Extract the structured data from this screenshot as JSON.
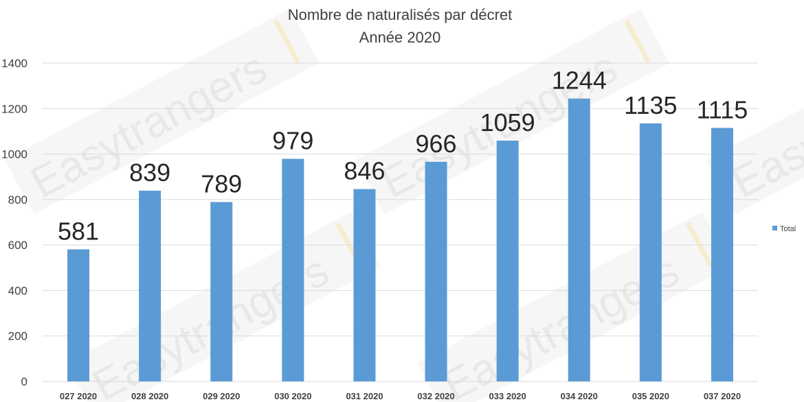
{
  "chart_data": {
    "type": "bar",
    "title": [
      "Nombre de naturalisés par décret",
      "Année 2020"
    ],
    "categories": [
      "027 2020",
      "028 2020",
      "029 2020",
      "030 2020",
      "031 2020",
      "032 2020",
      "033 2020",
      "034 2020",
      "035 2020",
      "037 2020"
    ],
    "series": [
      {
        "name": "Total",
        "values": [
          581,
          839,
          789,
          979,
          846,
          966,
          1059,
          1244,
          1135,
          1115
        ],
        "color": "#5b9bd5"
      }
    ],
    "ylim": [
      0,
      1400
    ],
    "yticks": [
      0,
      200,
      400,
      600,
      800,
      1000,
      1200,
      1400
    ],
    "grid": true,
    "data_labels": true,
    "legend_position": "right"
  },
  "watermark": {
    "text": "Easytrangers"
  }
}
